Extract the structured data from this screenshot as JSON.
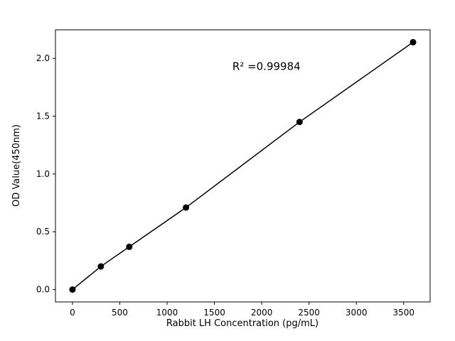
{
  "chart_data": {
    "type": "scatter",
    "title": "",
    "xlabel": "Rabbit LH Concentration (pg/mL)",
    "ylabel": "OD Value(450nm)",
    "x": [
      0,
      300,
      600,
      1200,
      2400,
      3600
    ],
    "y": [
      0.0,
      0.2,
      0.37,
      0.71,
      1.45,
      2.14
    ],
    "line_through_points": true,
    "xlim": [
      -180,
      3780
    ],
    "ylim": [
      -0.107,
      2.247
    ],
    "xticks": [
      0,
      500,
      1000,
      1500,
      2000,
      2500,
      3000,
      3500
    ],
    "yticks": [
      "0.0",
      "0.5",
      "1.0",
      "1.5",
      "2.0"
    ],
    "annotation": {
      "text": "R² =0.99984",
      "x": 2050,
      "y": 1.9
    },
    "grid": false,
    "legend": "none",
    "marker_color": "#000000",
    "line_color": "#000000",
    "axis_color": "#000000",
    "background_color": "#ffffff"
  }
}
